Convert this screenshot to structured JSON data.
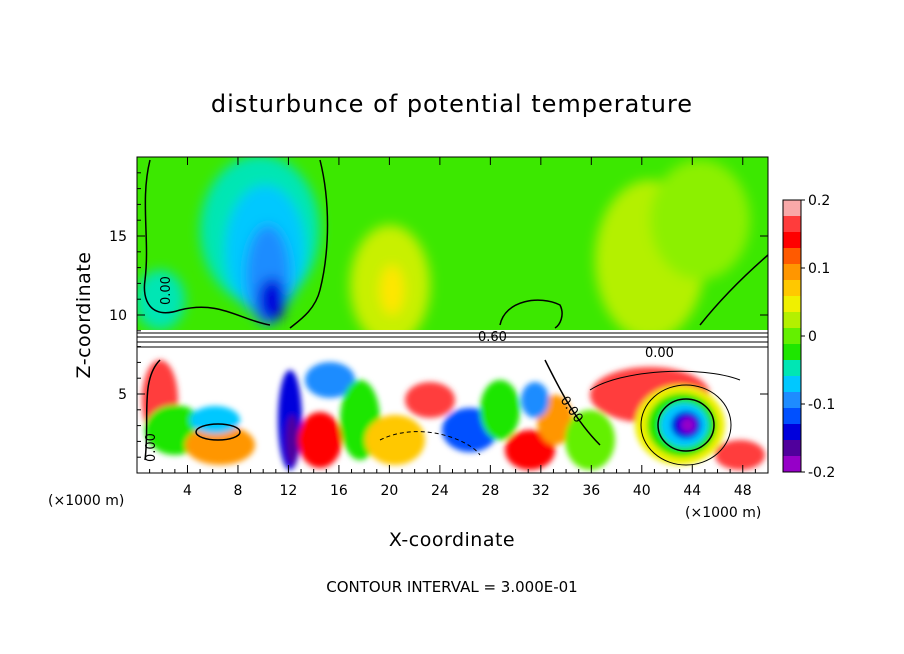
{
  "chart_data": {
    "type": "heatmap",
    "title": "disturbunce of potential temperature",
    "xlabel": "X-coordinate",
    "ylabel": "Z-coordinate",
    "x_unit": "(×1000 m)",
    "xlim": [
      0,
      50
    ],
    "ylim": [
      0,
      20
    ],
    "x_ticks": [
      4,
      8,
      12,
      16,
      20,
      24,
      28,
      32,
      36,
      40,
      44,
      48
    ],
    "y_ticks": [
      5,
      10,
      15
    ],
    "colorbar": {
      "range": [
        -0.2,
        0.2
      ],
      "ticks": [
        "0.2",
        "0.1",
        "0",
        "-0.1",
        "-0.2"
      ],
      "colors": [
        "#f9a9a9",
        "#ff3c3c",
        "#ff0000",
        "#ff5a00",
        "#ff9600",
        "#ffc800",
        "#f0f000",
        "#b4f000",
        "#64f000",
        "#1ee600",
        "#00e6b4",
        "#00c8ff",
        "#1e8cff",
        "#0050ff",
        "#0000dc",
        "#50009c",
        "#9600c8"
      ]
    },
    "contour_labels": [
      "0.00",
      "0.00",
      "0.60",
      "0.00",
      "0.00"
    ],
    "footer": "CONTOUR INTERVAL = 3.000E-01"
  }
}
